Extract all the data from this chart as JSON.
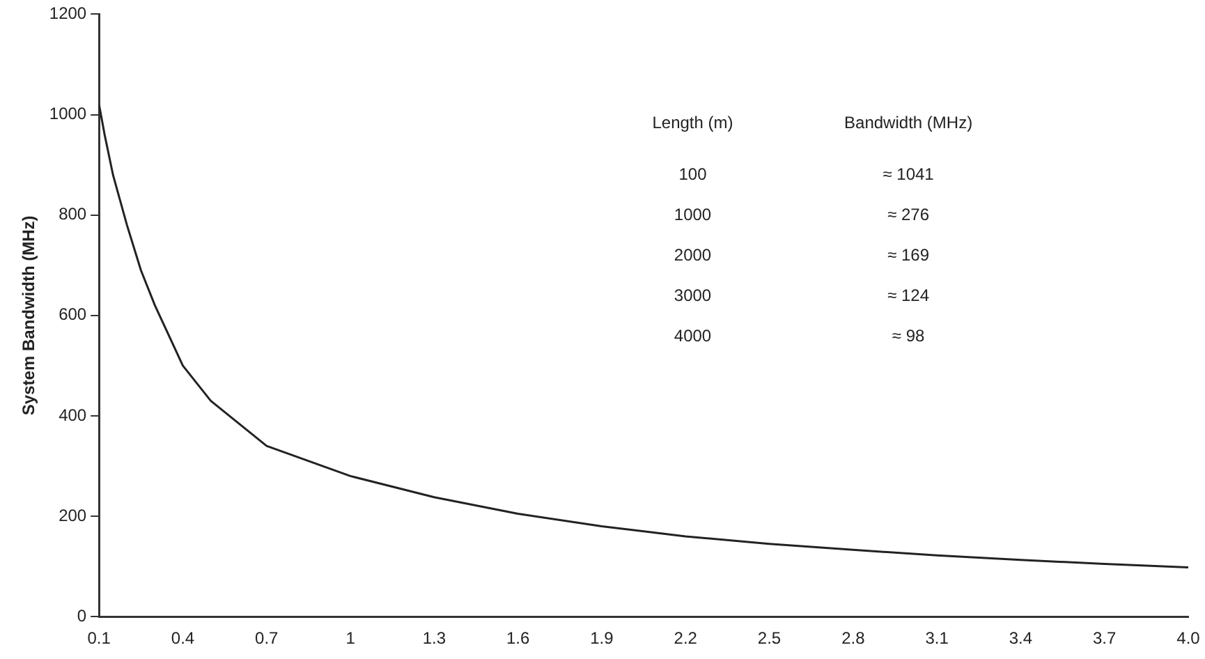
{
  "chart_data": {
    "type": "line",
    "ylabel": "System Bandwidth (MHz)",
    "x": [
      0.1,
      0.12,
      0.15,
      0.2,
      0.25,
      0.3,
      0.4,
      0.5,
      0.7,
      1,
      1.3,
      1.6,
      1.9,
      2.2,
      2.5,
      2.8,
      3.1,
      3.4,
      3.7,
      4.0
    ],
    "series": [
      {
        "color": "#222222",
        "values": [
          1020,
          960,
          880,
          780,
          690,
          620,
          500,
          430,
          340,
          280,
          238,
          205,
          180,
          160,
          145,
          133,
          122,
          113,
          105,
          98
        ]
      }
    ],
    "xlim": [
      0.1,
      4.0
    ],
    "xticks": [
      0.1,
      0.4,
      0.7,
      1,
      1.3,
      1.6,
      1.9,
      2.2,
      2.5,
      2.8,
      3.1,
      3.4,
      3.7,
      {
        "value": 4,
        "label": "4.0"
      }
    ],
    "ylim": [
      0,
      1200
    ],
    "yticks": [
      0,
      200,
      400,
      600,
      800,
      1000,
      1200
    ],
    "grid": false,
    "legend": false,
    "marker": "none",
    "line_style": "solid",
    "annotations": [
      "Length (m)",
      "Bandwidth (MHz)",
      "100",
      "≈ 1041",
      "1000",
      "≈ 276",
      "2000",
      "≈ 169",
      "3000",
      "≈ 124",
      "4000",
      "≈ 98"
    ]
  }
}
